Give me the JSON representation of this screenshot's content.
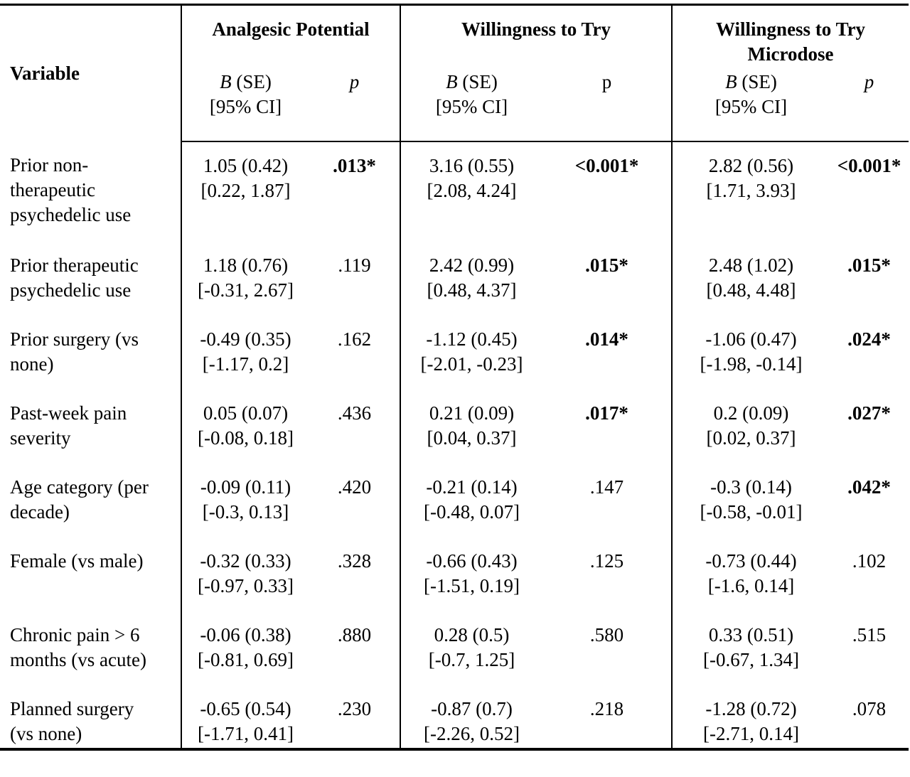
{
  "header": {
    "variable_label": "Variable",
    "groups": [
      {
        "title_line1": "Analgesic Potential",
        "title_line2": "",
        "b_label": "B",
        "b_suffix": " (SE)",
        "ci_label": "[95% CI]",
        "p_label": "p",
        "p_italic": true
      },
      {
        "title_line1": "Willingness to Try",
        "title_line2": "",
        "b_label": "B",
        "b_suffix": " (SE)",
        "ci_label": "[95% CI]",
        "p_label": "p",
        "p_italic": false
      },
      {
        "title_line1": "Willingness to Try",
        "title_line2": "Microdose",
        "b_label": "B",
        "b_suffix": " (SE)",
        "ci_label": "[95% CI]",
        "p_label": "p",
        "p_italic": true
      }
    ]
  },
  "rows": [
    {
      "variable": "Prior non-therapeutic psychedelic use",
      "variable_lines": [
        "Prior non-",
        "therapeutic",
        "psychedelic use"
      ],
      "cells": [
        {
          "b": "1.05 (0.42)",
          "ci": "[0.22, 1.87]",
          "p": ".013*",
          "sig": true
        },
        {
          "b": "3.16 (0.55)",
          "ci": "[2.08, 4.24]",
          "p": "<0.001*",
          "sig": true
        },
        {
          "b": "2.82 (0.56)",
          "ci": "[1.71, 3.93]",
          "p": "<0.001*",
          "sig": true
        }
      ]
    },
    {
      "variable": "Prior therapeutic psychedelic use",
      "variable_lines": [
        "Prior therapeutic",
        "psychedelic use"
      ],
      "cells": [
        {
          "b": "1.18 (0.76)",
          "ci": "[-0.31, 2.67]",
          "p": ".119",
          "sig": false
        },
        {
          "b": "2.42 (0.99)",
          "ci": "[0.48, 4.37]",
          "p": ".015*",
          "sig": true
        },
        {
          "b": "2.48 (1.02)",
          "ci": "[0.48, 4.48]",
          "p": ".015*",
          "sig": true
        }
      ]
    },
    {
      "variable": "Prior surgery (vs none)",
      "variable_lines": [
        "Prior surgery (vs",
        "none)"
      ],
      "cells": [
        {
          "b": "-0.49 (0.35)",
          "ci": "[-1.17, 0.2]",
          "p": ".162",
          "sig": false
        },
        {
          "b": "-1.12 (0.45)",
          "ci": "[-2.01, -0.23]",
          "p": ".014*",
          "sig": true
        },
        {
          "b": "-1.06 (0.47)",
          "ci": "[-1.98, -0.14]",
          "p": ".024*",
          "sig": true
        }
      ]
    },
    {
      "variable": "Past-week pain severity",
      "variable_lines": [
        "Past-week pain",
        "severity"
      ],
      "cells": [
        {
          "b": "0.05 (0.07)",
          "ci": "[-0.08, 0.18]",
          "p": ".436",
          "sig": false
        },
        {
          "b": "0.21 (0.09)",
          "ci": "[0.04, 0.37]",
          "p": ".017*",
          "sig": true
        },
        {
          "b": "0.2 (0.09)",
          "ci": "[0.02, 0.37]",
          "p": ".027*",
          "sig": true
        }
      ]
    },
    {
      "variable": "Age category (per decade)",
      "variable_lines": [
        "Age category (per",
        "decade)"
      ],
      "cells": [
        {
          "b": "-0.09 (0.11)",
          "ci": "[-0.3, 0.13]",
          "p": ".420",
          "sig": false
        },
        {
          "b": "-0.21 (0.14)",
          "ci": "[-0.48, 0.07]",
          "p": ".147",
          "sig": false
        },
        {
          "b": "-0.3 (0.14)",
          "ci": "[-0.58, -0.01]",
          "p": ".042*",
          "sig": true
        }
      ]
    },
    {
      "variable": "Female (vs male)",
      "variable_lines": [
        "Female (vs male)"
      ],
      "cells": [
        {
          "b": "-0.32 (0.33)",
          "ci": "[-0.97, 0.33]",
          "p": ".328",
          "sig": false
        },
        {
          "b": "-0.66 (0.43)",
          "ci": "[-1.51, 0.19]",
          "p": ".125",
          "sig": false
        },
        {
          "b": "-0.73 (0.44)",
          "ci": "[-1.6, 0.14]",
          "p": ".102",
          "sig": false
        }
      ]
    },
    {
      "variable": "Chronic pain > 6 months (vs acute)",
      "variable_lines": [
        "Chronic pain > 6",
        "months (vs acute)"
      ],
      "cells": [
        {
          "b": "-0.06 (0.38)",
          "ci": "[-0.81, 0.69]",
          "p": ".880",
          "sig": false
        },
        {
          "b": "0.28 (0.5)",
          "ci": "[-0.7, 1.25]",
          "p": ".580",
          "sig": false
        },
        {
          "b": "0.33 (0.51)",
          "ci": "[-0.67, 1.34]",
          "p": ".515",
          "sig": false
        }
      ]
    },
    {
      "variable": "Planned surgery (vs none)",
      "variable_lines": [
        "Planned surgery",
        "(vs none)"
      ],
      "cells": [
        {
          "b": "-0.65 (0.54)",
          "ci": "[-1.71, 0.41]",
          "p": ".230",
          "sig": false
        },
        {
          "b": "-0.87 (0.7)",
          "ci": "[-2.26, 0.52]",
          "p": ".218",
          "sig": false
        },
        {
          "b": "-1.28 (0.72)",
          "ci": "[-2.71, 0.14]",
          "p": ".078",
          "sig": false
        }
      ]
    }
  ]
}
